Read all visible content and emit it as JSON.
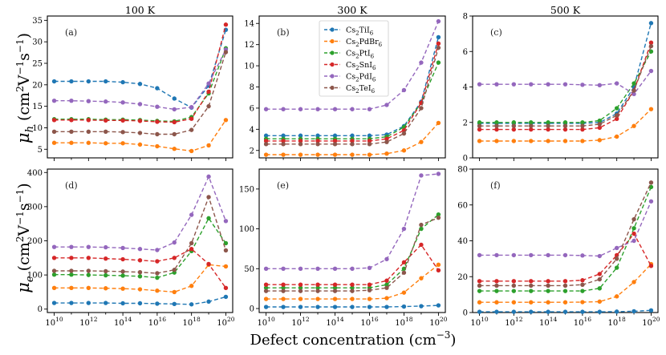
{
  "chart_data": {
    "type": "line",
    "x": [
      10000000000.0,
      100000000000.0,
      1000000000000.0,
      10000000000000.0,
      100000000000000.0,
      1000000000000000.0,
      1e+16,
      1e+17,
      1e+18,
      1e+19,
      1e+20
    ],
    "x_tick_labels": [
      "10",
      "10",
      "10",
      "10",
      "10",
      "10"
    ],
    "x_tick_exponents": [
      "10",
      "12",
      "14",
      "16",
      "18",
      "20"
    ],
    "xlabel": "Defect concentration (cm",
    "xlabel_exp": "−3",
    "xlabel_close": ")",
    "row_labels": {
      "top": {
        "sym": "μ",
        "sub": "h",
        "unit": " (cm",
        "e1": "2",
        "mid": "V",
        "e2": "−1",
        "mid2": "s",
        "e3": "−1",
        "close": ")"
      },
      "bottom": {
        "sym": "μ",
        "sub": "e",
        "unit": " (cm",
        "e1": "2",
        "mid": "V",
        "e2": "−1",
        "mid2": "s",
        "e3": "−1",
        "close": ")"
      }
    },
    "column_titles": [
      "100 K",
      "300 K",
      "500 K"
    ],
    "series_styles": [
      {
        "name": "Cs2TiI6",
        "base": "Cs",
        "s1": "2",
        "mid": "TiI",
        "s2": "6",
        "color": "#1f77b4"
      },
      {
        "name": "Cs2PdBr6",
        "base": "Cs",
        "s1": "2",
        "mid": "PdBr",
        "s2": "6",
        "color": "#ff7f0e"
      },
      {
        "name": "Cs2PtI6",
        "base": "Cs",
        "s1": "2",
        "mid": "PtI",
        "s2": "6",
        "color": "#2ca02c"
      },
      {
        "name": "Cs2SnI6",
        "base": "Cs",
        "s1": "2",
        "mid": "SnI",
        "s2": "6",
        "color": "#d62728"
      },
      {
        "name": "Cs2PdI6",
        "base": "Cs",
        "s1": "2",
        "mid": "PdI",
        "s2": "6",
        "color": "#9467bd"
      },
      {
        "name": "Cs2TeI6",
        "base": "Cs",
        "s1": "2",
        "mid": "TeI",
        "s2": "6",
        "color": "#8c564b"
      }
    ],
    "legend_location": "panel (b) top-center",
    "panels": [
      {
        "label": "(a)",
        "ylim": [
          3,
          36
        ],
        "yticks": [
          5,
          10,
          15,
          20,
          25,
          30,
          35
        ],
        "series": [
          [
            20.8,
            20.8,
            20.8,
            20.8,
            20.6,
            20.2,
            19.2,
            16.8,
            14.7,
            19.8,
            32.8
          ],
          [
            6.5,
            6.5,
            6.5,
            6.4,
            6.4,
            6.1,
            5.7,
            5.1,
            4.6,
            5.9,
            11.8
          ],
          [
            12.0,
            12.0,
            12.0,
            11.9,
            11.9,
            11.8,
            11.6,
            11.5,
            12.5,
            18.0,
            28.5
          ],
          [
            11.8,
            11.8,
            11.8,
            11.7,
            11.7,
            11.6,
            11.4,
            11.3,
            12.1,
            18.4,
            34.0
          ],
          [
            16.3,
            16.3,
            16.2,
            16.1,
            15.9,
            15.5,
            14.9,
            14.3,
            14.8,
            20.3,
            28.2
          ],
          [
            9.1,
            9.1,
            9.1,
            9.1,
            9.0,
            8.8,
            8.5,
            8.5,
            9.5,
            15.0,
            27.6
          ]
        ]
      },
      {
        "label": "(b)",
        "ylim": [
          1.3,
          14.7
        ],
        "yticks": [
          2,
          4,
          6,
          8,
          10,
          12,
          14
        ],
        "series": [
          [
            3.4,
            3.4,
            3.4,
            3.4,
            3.4,
            3.4,
            3.4,
            3.5,
            4.3,
            6.6,
            12.7
          ],
          [
            1.6,
            1.6,
            1.6,
            1.6,
            1.6,
            1.6,
            1.6,
            1.7,
            2.0,
            2.8,
            4.6
          ],
          [
            3.1,
            3.1,
            3.1,
            3.1,
            3.1,
            3.1,
            3.1,
            3.3,
            4.2,
            6.5,
            10.3
          ],
          [
            2.9,
            2.9,
            2.9,
            2.9,
            2.9,
            2.9,
            2.9,
            3.1,
            3.9,
            6.5,
            12.1
          ],
          [
            5.9,
            5.9,
            5.9,
            5.9,
            5.9,
            5.9,
            5.9,
            6.3,
            7.7,
            10.3,
            14.2
          ],
          [
            2.6,
            2.6,
            2.6,
            2.6,
            2.6,
            2.6,
            2.6,
            2.8,
            3.6,
            6.0,
            11.7
          ]
        ]
      },
      {
        "label": "(c)",
        "ylim": [
          0,
          8
        ],
        "yticks": [
          0,
          2,
          4,
          6,
          8
        ],
        "series": [
          [
            1.95,
            1.95,
            1.95,
            1.95,
            1.95,
            1.95,
            1.95,
            2.0,
            2.5,
            4.0,
            7.6
          ],
          [
            0.95,
            0.95,
            0.95,
            0.95,
            0.95,
            0.95,
            0.95,
            1.0,
            1.2,
            1.8,
            2.75
          ],
          [
            2.0,
            2.0,
            2.0,
            2.0,
            2.0,
            2.0,
            2.0,
            2.1,
            2.8,
            4.2,
            6.0
          ],
          [
            1.6,
            1.6,
            1.6,
            1.6,
            1.6,
            1.6,
            1.6,
            1.7,
            2.2,
            3.8,
            6.5
          ],
          [
            4.15,
            4.15,
            4.15,
            4.15,
            4.15,
            4.15,
            4.12,
            4.1,
            4.2,
            3.6,
            4.9
          ],
          [
            1.8,
            1.8,
            1.8,
            1.8,
            1.8,
            1.8,
            1.8,
            1.9,
            2.4,
            3.8,
            6.3
          ]
        ]
      },
      {
        "label": "(d)",
        "ylim": [
          -10,
          410
        ],
        "yticks": [
          0,
          100,
          200,
          300,
          400
        ],
        "series": [
          [
            18,
            18,
            18,
            18,
            17,
            17,
            16,
            15,
            14,
            22,
            36
          ],
          [
            62,
            62,
            62,
            61,
            60,
            58,
            54,
            50,
            68,
            130,
            125
          ],
          [
            101,
            101,
            100,
            99,
            98,
            96,
            92,
            107,
            170,
            266,
            193
          ],
          [
            150,
            150,
            150,
            148,
            146,
            143,
            140,
            150,
            176,
            132,
            62
          ],
          [
            182,
            182,
            182,
            181,
            179,
            176,
            173,
            195,
            276,
            388,
            258
          ],
          [
            112,
            112,
            112,
            111,
            110,
            108,
            105,
            115,
            193,
            328,
            172
          ]
        ]
      },
      {
        "label": "(e)",
        "ylim": [
          -5,
          175
        ],
        "yticks": [
          0,
          50,
          100,
          150
        ],
        "series": [
          [
            2,
            2,
            2,
            2,
            2,
            2,
            2,
            2,
            2.5,
            3,
            4
          ],
          [
            12,
            12,
            12,
            12,
            12,
            12,
            12,
            13,
            20,
            38,
            55
          ],
          [
            26,
            26,
            26,
            26,
            26,
            26,
            26,
            30,
            50,
            100,
            118
          ],
          [
            30,
            30,
            30,
            30,
            30,
            30,
            30,
            35,
            58,
            80,
            48
          ],
          [
            50,
            50,
            50,
            50,
            50,
            50,
            51,
            62,
            100,
            167,
            169
          ],
          [
            22,
            22,
            22,
            22,
            22,
            22,
            23,
            26,
            45,
            105,
            114
          ]
        ]
      },
      {
        "label": "(f)",
        "ylim": [
          0,
          80
        ],
        "yticks": [
          0,
          20,
          40,
          60,
          80
        ],
        "series": [
          [
            0.4,
            0.4,
            0.4,
            0.4,
            0.4,
            0.4,
            0.4,
            0.4,
            0.5,
            0.7,
            1.2
          ],
          [
            5.7,
            5.7,
            5.7,
            5.7,
            5.7,
            5.7,
            5.8,
            6.1,
            9.0,
            17.0,
            27.0
          ],
          [
            12.0,
            12.0,
            12.0,
            12.0,
            12.0,
            12.0,
            12.0,
            13.5,
            25.0,
            47.0,
            70.0
          ],
          [
            17.5,
            17.5,
            17.5,
            17.5,
            17.5,
            17.5,
            18.0,
            21.5,
            32.0,
            44.0,
            26.0
          ],
          [
            32.0,
            32.0,
            32.0,
            32.0,
            32.0,
            32.0,
            31.8,
            31.5,
            36.0,
            40.0,
            62.0
          ],
          [
            15.0,
            15.0,
            15.0,
            15.0,
            15.0,
            15.0,
            15.5,
            18.5,
            30.0,
            52.0,
            72.5
          ]
        ]
      }
    ]
  }
}
